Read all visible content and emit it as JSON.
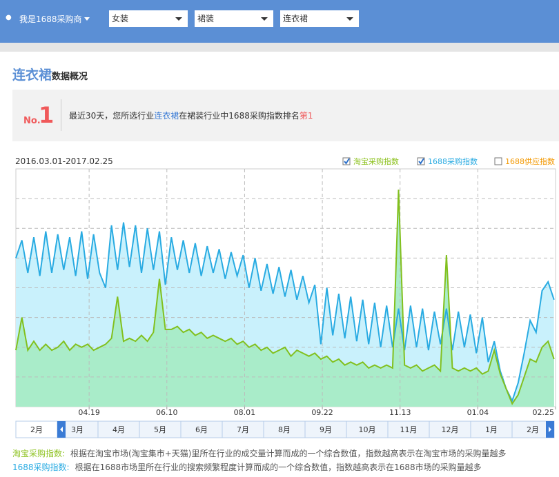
{
  "header": {
    "user": "我是1688采购商",
    "selects": [
      "女装",
      "裙装",
      "连衣裙"
    ]
  },
  "section": {
    "title": "连衣裙",
    "subtitle": "数据概况"
  },
  "rank": {
    "prefix": "No.",
    "rank": "1",
    "text_parts": [
      "最近30天，您所选行业",
      "连衣裙",
      "在裙装行业中1688采购指数排名",
      "第1"
    ]
  },
  "chart_data": {
    "type": "area",
    "date_range": "2016.03.01-2017.02.25",
    "x": [
      0,
      4,
      8,
      12,
      16,
      20,
      24,
      28,
      32,
      36,
      40,
      44,
      48,
      52,
      56,
      60,
      64,
      68,
      72,
      76,
      80,
      84,
      88,
      92,
      96,
      100,
      104,
      108,
      112,
      116,
      120,
      124,
      128,
      132,
      136,
      140,
      144,
      148,
      152,
      156,
      160,
      164,
      168,
      172,
      176,
      180,
      184,
      188,
      192,
      196,
      200,
      204,
      208,
      212,
      216,
      220,
      224,
      228,
      232,
      236,
      240,
      244,
      248,
      252,
      256,
      260,
      264,
      268,
      272,
      276,
      280,
      284,
      288,
      292,
      296,
      300,
      304,
      308,
      312,
      316,
      320,
      324,
      328,
      332,
      336,
      340,
      344,
      348,
      352,
      356,
      360
    ],
    "xlim": [
      0,
      361
    ],
    "xticks": [
      {
        "value": 49,
        "label": "04.19"
      },
      {
        "value": 101,
        "label": "06.10"
      },
      {
        "value": 153,
        "label": "08.01"
      },
      {
        "value": 205,
        "label": "09.22"
      },
      {
        "value": 257,
        "label": "11.13"
      },
      {
        "value": 309,
        "label": "01.04"
      },
      {
        "value": 361,
        "label": "02.25"
      }
    ],
    "ylim": [
      0,
      8
    ],
    "yticks": [
      1,
      2,
      3,
      4,
      5,
      6,
      7
    ],
    "grid": true,
    "series": [
      {
        "name": "1688采购指数",
        "color": "#29abe2",
        "fill": "#c9f1fc",
        "checked": true,
        "values": [
          5.0,
          5.6,
          4.5,
          5.7,
          4.4,
          5.9,
          4.5,
          5.8,
          4.6,
          5.7,
          4.4,
          5.9,
          4.3,
          5.8,
          4.5,
          4.0,
          6.1,
          4.6,
          6.2,
          4.7,
          6.1,
          4.5,
          6.0,
          4.6,
          5.9,
          4.1,
          5.7,
          4.6,
          5.6,
          4.5,
          5.5,
          4.4,
          5.4,
          4.5,
          5.3,
          4.3,
          5.2,
          4.4,
          5.1,
          4.0,
          5.0,
          3.9,
          4.8,
          3.8,
          4.7,
          3.7,
          4.6,
          3.6,
          4.4,
          3.5,
          4.1,
          2.1,
          4.0,
          2.4,
          3.8,
          2.3,
          3.7,
          2.2,
          3.6,
          2.1,
          3.5,
          2.0,
          3.4,
          2.0,
          3.3,
          1.9,
          3.4,
          2.0,
          3.3,
          1.9,
          3.2,
          2.1,
          3.3,
          1.9,
          3.2,
          2.0,
          3.1,
          1.8,
          3.0,
          1.5,
          2.2,
          1.2,
          0.6,
          0.2,
          0.8,
          1.8,
          2.9,
          2.5,
          3.9,
          4.2,
          3.6
        ]
      },
      {
        "name": "淘宝采购指数",
        "color": "#82c01e",
        "fill": "#a9ecc9",
        "checked": true,
        "values": [
          1.9,
          3.0,
          1.9,
          2.2,
          1.9,
          2.1,
          1.9,
          2.0,
          2.2,
          1.9,
          2.1,
          2.0,
          2.1,
          1.9,
          2.0,
          2.1,
          2.3,
          3.7,
          2.2,
          2.3,
          2.2,
          2.4,
          2.2,
          2.5,
          4.3,
          2.6,
          2.6,
          2.7,
          2.5,
          2.6,
          2.4,
          2.5,
          2.3,
          2.4,
          2.3,
          2.2,
          2.3,
          2.1,
          2.2,
          2.0,
          2.1,
          1.9,
          2.0,
          1.8,
          1.9,
          2.0,
          1.7,
          1.9,
          1.8,
          1.7,
          1.8,
          1.6,
          1.7,
          1.5,
          1.6,
          1.4,
          1.5,
          1.4,
          1.5,
          1.3,
          1.4,
          1.3,
          1.4,
          1.3,
          7.3,
          1.4,
          1.3,
          1.4,
          1.2,
          1.3,
          1.4,
          1.2,
          5.1,
          1.3,
          1.2,
          1.3,
          1.2,
          1.3,
          1.1,
          1.2,
          1.9,
          1.1,
          0.6,
          0.1,
          0.4,
          1.0,
          1.6,
          1.5,
          2.0,
          2.2,
          1.6
        ]
      }
    ],
    "legend": [
      {
        "name": "淘宝采购指数",
        "color": "#8dc21f",
        "checked": true
      },
      {
        "name": "1688采购指数",
        "color": "#29abe2",
        "checked": true
      },
      {
        "name": "1688供应指数",
        "color": "#f39800",
        "checked": false
      }
    ]
  },
  "range_selector": {
    "labels": [
      "2月",
      "3月",
      "4月",
      "5月",
      "6月",
      "7月",
      "8月",
      "9月",
      "10月",
      "11月",
      "12月",
      "1月",
      "2月"
    ]
  },
  "notes": [
    {
      "term": "淘宝采购指数:",
      "color": "#8dc21f",
      "text": "根据在淘宝市场(淘宝集市+天猫)里所在行业的成交量计算而成的一个综合数值，指数越高表示在淘宝市场的采购量越多"
    },
    {
      "term": "1688采购指数:",
      "color": "#29abe2",
      "text": "根据在1688市场里所在行业的搜索频繁程度计算而成的一个综合数值，指数越高表示在1688市场的采购量越多"
    }
  ]
}
